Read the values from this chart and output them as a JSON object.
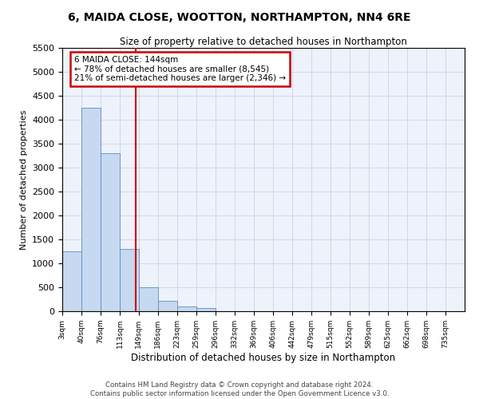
{
  "title": "6, MAIDA CLOSE, WOOTTON, NORTHAMPTON, NN4 6RE",
  "subtitle": "Size of property relative to detached houses in Northampton",
  "xlabel": "Distribution of detached houses by size in Northampton",
  "ylabel": "Number of detached properties",
  "footer_line1": "Contains HM Land Registry data © Crown copyright and database right 2024.",
  "footer_line2": "Contains public sector information licensed under the Open Government Licence v3.0.",
  "bar_color": "#c6d9f0",
  "bar_edge_color": "#5b8bc9",
  "vline_color": "#cc0000",
  "annotation_text_line1": "6 MAIDA CLOSE: 144sqm",
  "annotation_text_line2": "← 78% of detached houses are smaller (8,545)",
  "annotation_text_line3": "21% of semi-detached houses are larger (2,346) →",
  "property_size_sqm": 144,
  "categories": [
    "3sqm",
    "40sqm",
    "76sqm",
    "113sqm",
    "149sqm",
    "186sqm",
    "223sqm",
    "259sqm",
    "296sqm",
    "332sqm",
    "369sqm",
    "406sqm",
    "442sqm",
    "479sqm",
    "515sqm",
    "552sqm",
    "589sqm",
    "625sqm",
    "662sqm",
    "698sqm",
    "735sqm"
  ],
  "bin_edges": [
    3,
    40,
    76,
    113,
    149,
    186,
    223,
    259,
    296,
    332,
    369,
    406,
    442,
    479,
    515,
    552,
    589,
    625,
    662,
    698,
    735
  ],
  "bar_heights": [
    1250,
    4250,
    3300,
    1300,
    500,
    225,
    100,
    60,
    0,
    0,
    0,
    0,
    0,
    0,
    0,
    0,
    0,
    0,
    0,
    0
  ],
  "ylim": [
    0,
    5500
  ],
  "yticks": [
    0,
    500,
    1000,
    1500,
    2000,
    2500,
    3000,
    3500,
    4000,
    4500,
    5000,
    5500
  ],
  "grid_color": "#c8d4e8",
  "background_color": "#eef2fa"
}
